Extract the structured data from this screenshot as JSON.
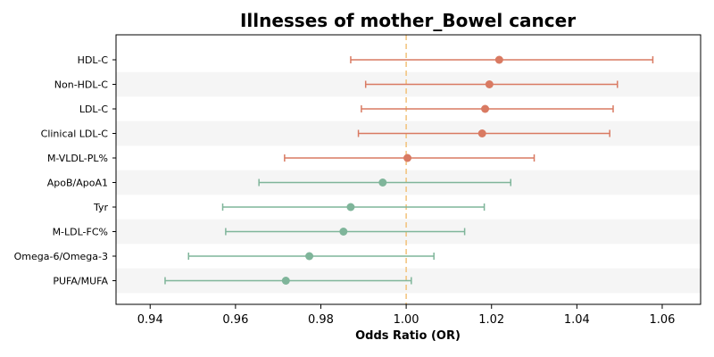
{
  "chart_data": {
    "type": "forest",
    "title": "Illnesses of mother_Bowel cancer",
    "xlabel": "Odds Ratio (OR)",
    "ylabel": "",
    "xlim": [
      0.932,
      1.069
    ],
    "xticks": [
      0.94,
      0.96,
      0.98,
      1.0,
      1.02,
      1.04,
      1.06
    ],
    "xtick_labels": [
      "0.94",
      "0.96",
      "0.98",
      "1.00",
      "1.02",
      "1.04",
      "1.06"
    ],
    "reference_line": 1.0,
    "alternating_row_shading": true,
    "colors": {
      "above_reference": "#d97a62",
      "below_reference": "#7fb59a",
      "reference_line": "#f2c27a",
      "row_shade": "#f5f5f5"
    },
    "rows": [
      {
        "label": "HDL-C",
        "or": 1.0218,
        "lower": 0.987,
        "upper": 1.0578,
        "group": "above_reference"
      },
      {
        "label": "Non-HDL-C",
        "or": 1.0195,
        "lower": 0.9905,
        "upper": 1.0495,
        "group": "above_reference"
      },
      {
        "label": "LDL-C",
        "or": 1.0185,
        "lower": 0.9895,
        "upper": 1.0485,
        "group": "above_reference"
      },
      {
        "label": "Clinical LDL-C",
        "or": 1.0178,
        "lower": 0.9888,
        "upper": 1.0477,
        "group": "above_reference"
      },
      {
        "label": "M-VLDL-PL%",
        "or": 1.0003,
        "lower": 0.9715,
        "upper": 1.03,
        "group": "above_reference"
      },
      {
        "label": "ApoB/ApoA1",
        "or": 0.9945,
        "lower": 0.9655,
        "upper": 1.0245,
        "group": "below_reference"
      },
      {
        "label": "Tyr",
        "or": 0.987,
        "lower": 0.957,
        "upper": 1.0183,
        "group": "below_reference"
      },
      {
        "label": "M-LDL-FC%",
        "or": 0.9853,
        "lower": 0.9577,
        "upper": 1.0137,
        "group": "below_reference"
      },
      {
        "label": "Omega-6/Omega-3",
        "or": 0.9773,
        "lower": 0.949,
        "upper": 1.0065,
        "group": "below_reference"
      },
      {
        "label": "PUFA/MUFA",
        "or": 0.9718,
        "lower": 0.9435,
        "upper": 1.0012,
        "group": "below_reference"
      }
    ]
  }
}
